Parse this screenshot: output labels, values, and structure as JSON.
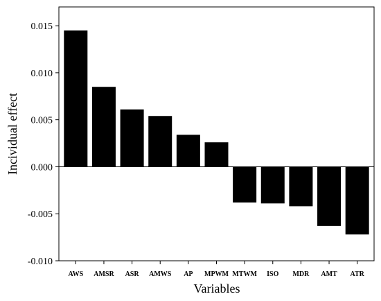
{
  "chart_data": {
    "type": "bar",
    "title": "",
    "xlabel": "Variables",
    "ylabel": "Incividual effect",
    "categories": [
      "AWS",
      "AMSR",
      "ASR",
      "AMWS",
      "AP",
      "MPWM",
      "MTWM",
      "ISO",
      "MDR",
      "AMT",
      "ATR"
    ],
    "values": [
      0.0145,
      0.0085,
      0.0061,
      0.0054,
      0.0034,
      0.0026,
      -0.0038,
      -0.0039,
      -0.0042,
      -0.0063,
      -0.0072
    ],
    "ylim": [
      -0.01,
      0.017
    ],
    "yticks": [
      -0.01,
      -0.005,
      0.0,
      0.005,
      0.01,
      0.015
    ],
    "ytick_labels": [
      "-0.010",
      "-0.005",
      "0.000",
      "0.005",
      "0.010",
      "0.015"
    ],
    "grid": false,
    "legend": "none",
    "bar_color": "#000000"
  }
}
